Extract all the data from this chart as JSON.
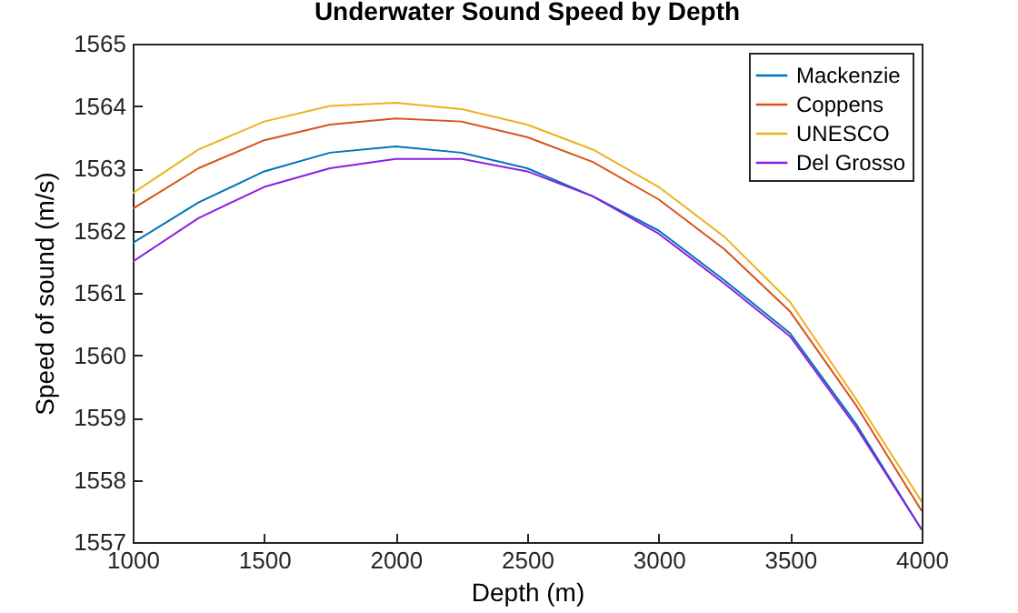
{
  "chart_data": {
    "type": "line",
    "title": "Underwater Sound Speed by Depth",
    "xlabel": "Depth (m)",
    "ylabel": "Speed of sound (m/s)",
    "x": [
      1000,
      1250,
      1500,
      1750,
      2000,
      2250,
      2500,
      2750,
      3000,
      3250,
      3500,
      3750,
      4000
    ],
    "series": [
      {
        "name": "Mackenzie",
        "color": "#0072bd",
        "values": [
          1561.8,
          1562.45,
          1562.95,
          1563.25,
          1563.35,
          1563.25,
          1563.0,
          1562.55,
          1562.0,
          1561.2,
          1560.35,
          1558.9,
          1557.2
        ]
      },
      {
        "name": "Coppens",
        "color": "#d95319",
        "values": [
          1562.35,
          1563.0,
          1563.45,
          1563.7,
          1563.8,
          1563.75,
          1563.5,
          1563.1,
          1562.5,
          1561.7,
          1560.7,
          1559.2,
          1557.5
        ]
      },
      {
        "name": "UNESCO",
        "color": "#edb120",
        "values": [
          1562.6,
          1563.3,
          1563.75,
          1564.0,
          1564.05,
          1563.95,
          1563.7,
          1563.3,
          1562.7,
          1561.9,
          1560.85,
          1559.3,
          1557.65
        ]
      },
      {
        "name": "Del Grosso",
        "color": "#8c1ee0",
        "values": [
          1561.5,
          1562.2,
          1562.7,
          1563.0,
          1563.15,
          1563.15,
          1562.95,
          1562.55,
          1561.95,
          1561.15,
          1560.3,
          1558.85,
          1557.2
        ]
      }
    ],
    "xlim": [
      1000,
      4000
    ],
    "xticks": [
      1000,
      1500,
      2000,
      2500,
      3000,
      3500,
      4000
    ],
    "ylim": [
      1557,
      1565
    ],
    "yticks": [
      1557,
      1558,
      1559,
      1560,
      1561,
      1562,
      1563,
      1564,
      1565
    ],
    "legend": "top right",
    "grid": false,
    "line_style": "solid",
    "marker": "none"
  }
}
